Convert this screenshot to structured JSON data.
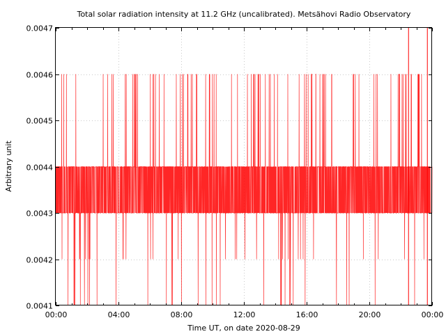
{
  "chart_data": {
    "type": "line",
    "title": "Total solar radiation intensity at 11.2 GHz (uncalibrated). Metsähovi Radio Observatory",
    "xlabel": "Time UT, on date 2020-08-29",
    "ylabel": "Arbitrary unit",
    "xlim": [
      0,
      24
    ],
    "ylim": [
      0.0041,
      0.0047
    ],
    "x_ticks": [
      {
        "value": 0,
        "label": "00:00"
      },
      {
        "value": 4,
        "label": "04:00"
      },
      {
        "value": 8,
        "label": "08:00"
      },
      {
        "value": 12,
        "label": "12:00"
      },
      {
        "value": 16,
        "label": "16:00"
      },
      {
        "value": 20,
        "label": "20:00"
      },
      {
        "value": 24,
        "label": "00:00"
      }
    ],
    "y_ticks": [
      {
        "value": 0.0041,
        "label": "0.0041"
      },
      {
        "value": 0.0042,
        "label": "0.0042"
      },
      {
        "value": 0.0043,
        "label": "0.0043"
      },
      {
        "value": 0.0044,
        "label": "0.0044"
      },
      {
        "value": 0.0045,
        "label": "0.0045"
      },
      {
        "value": 0.0046,
        "label": "0.0046"
      },
      {
        "value": 0.0047,
        "label": "0.0047"
      }
    ],
    "grid": true,
    "series": [
      {
        "color": "#ff0000",
        "quantization_step": 0.0001,
        "main_band": [
          0.0043,
          0.0044
        ],
        "upper_spike_level": 0.0046,
        "lower_spike_floor": 0.0041,
        "max_spike_level": 0.0047,
        "dense_low_intervals": [
          [
            1.0,
            2.3
          ],
          [
            14.2,
            15.0
          ]
        ],
        "top_spikes_x": [
          22.5,
          23.7
        ]
      }
    ]
  }
}
